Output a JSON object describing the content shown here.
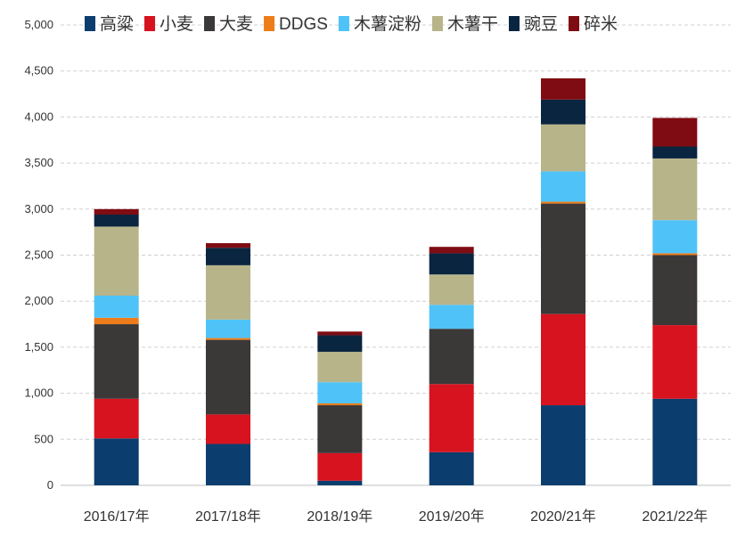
{
  "chart_data": {
    "type": "bar",
    "stacked": true,
    "categories": [
      "2016/17年",
      "2017/18年",
      "2018/19年",
      "2019/20年",
      "2020/21年",
      "2021/22年"
    ],
    "ylim": [
      0,
      5000
    ],
    "yticks": [
      "0",
      "500",
      "1,000",
      "1,500",
      "2,000",
      "2,500",
      "3,000",
      "3,500",
      "4,000",
      "4,500",
      "5,000"
    ],
    "ytick_values": [
      0,
      500,
      1000,
      1500,
      2000,
      2500,
      3000,
      3500,
      4000,
      4500,
      5000
    ],
    "grid": true,
    "legend_position": "top",
    "series": [
      {
        "name": "高粱",
        "color": "#0b3d6e",
        "values": [
          510,
          450,
          50,
          360,
          870,
          940
        ]
      },
      {
        "name": "小麦",
        "color": "#d7131f",
        "values": [
          430,
          320,
          300,
          740,
          990,
          800
        ]
      },
      {
        "name": "大麦",
        "color": "#3b3838",
        "values": [
          810,
          810,
          520,
          600,
          1200,
          760
        ]
      },
      {
        "name": "DDGS",
        "color": "#ed7d1a",
        "values": [
          70,
          20,
          20,
          0,
          20,
          20
        ]
      },
      {
        "name": "木薯淀粉",
        "color": "#4fc3f7",
        "values": [
          240,
          200,
          230,
          260,
          330,
          360
        ]
      },
      {
        "name": "木薯干",
        "color": "#b8b48a",
        "values": [
          750,
          590,
          330,
          330,
          510,
          670
        ]
      },
      {
        "name": "豌豆",
        "color": "#0a2540",
        "values": [
          130,
          190,
          180,
          230,
          270,
          130
        ]
      },
      {
        "name": "碎米",
        "color": "#7f0c12",
        "values": [
          60,
          50,
          40,
          70,
          230,
          310
        ]
      }
    ]
  }
}
